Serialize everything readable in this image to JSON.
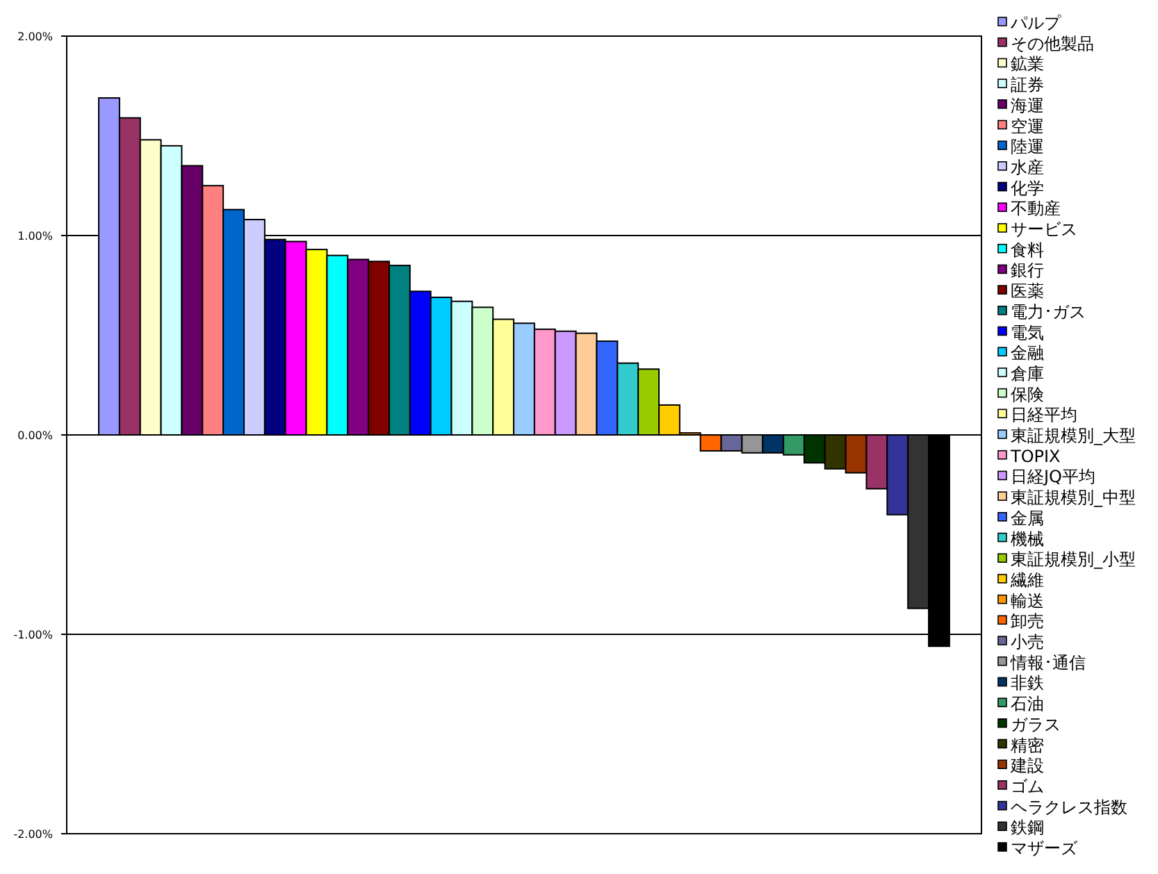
{
  "chart_data": {
    "type": "bar",
    "categories": [
      null
    ],
    "ylim": [
      -2,
      2
    ],
    "yticks": [
      {
        "value": -2,
        "label": "-2.00%"
      },
      {
        "value": -1,
        "label": "-1.00%"
      },
      {
        "value": 0,
        "label": "0.00%"
      },
      {
        "value": 1,
        "label": "1.00%"
      },
      {
        "value": 2,
        "label": "2.00%"
      }
    ],
    "grid": "y",
    "legend": "right",
    "tick_labels": "y",
    "series": [
      {
        "name": "パルプ",
        "color": "#9999ff",
        "values": [
          1.69
        ]
      },
      {
        "name": "その他製品",
        "color": "#993366",
        "values": [
          1.59
        ]
      },
      {
        "name": "鉱業",
        "color": "#ffffcc",
        "values": [
          1.48
        ]
      },
      {
        "name": "証券",
        "color": "#ccffff",
        "values": [
          1.45
        ]
      },
      {
        "name": "海運",
        "color": "#660066",
        "values": [
          1.35
        ]
      },
      {
        "name": "空運",
        "color": "#ff8080",
        "values": [
          1.25
        ]
      },
      {
        "name": "陸運",
        "color": "#0066cc",
        "values": [
          1.13
        ]
      },
      {
        "name": "水産",
        "color": "#ccccff",
        "values": [
          1.08
        ]
      },
      {
        "name": "化学",
        "color": "#000080",
        "values": [
          0.98
        ]
      },
      {
        "name": "不動産",
        "color": "#ff00ff",
        "values": [
          0.97
        ]
      },
      {
        "name": "サービス",
        "color": "#ffff00",
        "values": [
          0.93
        ]
      },
      {
        "name": "食料",
        "color": "#00ffff",
        "values": [
          0.9
        ]
      },
      {
        "name": "銀行",
        "color": "#800080",
        "values": [
          0.88
        ]
      },
      {
        "name": "医薬",
        "color": "#800000",
        "values": [
          0.87
        ]
      },
      {
        "name": "電力･ガス",
        "color": "#008080",
        "values": [
          0.85
        ]
      },
      {
        "name": "電気",
        "color": "#0000ff",
        "values": [
          0.72
        ]
      },
      {
        "name": "金融",
        "color": "#00ccff",
        "values": [
          0.69
        ]
      },
      {
        "name": "倉庫",
        "color": "#ccffff",
        "values": [
          0.67
        ]
      },
      {
        "name": "保険",
        "color": "#ccffcc",
        "values": [
          0.64
        ]
      },
      {
        "name": "日経平均",
        "color": "#ffff99",
        "values": [
          0.58
        ]
      },
      {
        "name": "東証規模別_大型",
        "color": "#99ccff",
        "values": [
          0.56
        ]
      },
      {
        "name": "TOPIX",
        "color": "#ff99cc",
        "values": [
          0.53
        ]
      },
      {
        "name": "日経JQ平均",
        "color": "#cc99ff",
        "values": [
          0.52
        ]
      },
      {
        "name": "東証規模別_中型",
        "color": "#ffcc99",
        "values": [
          0.51
        ]
      },
      {
        "name": "金属",
        "color": "#3366ff",
        "values": [
          0.47
        ]
      },
      {
        "name": "機械",
        "color": "#33cccc",
        "values": [
          0.36
        ]
      },
      {
        "name": "東証規模別_小型",
        "color": "#99cc00",
        "values": [
          0.33
        ]
      },
      {
        "name": "繊維",
        "color": "#ffcc00",
        "values": [
          0.15
        ]
      },
      {
        "name": "輸送",
        "color": "#ff9900",
        "values": [
          0.01
        ]
      },
      {
        "name": "卸売",
        "color": "#ff6600",
        "values": [
          -0.08
        ]
      },
      {
        "name": "小売",
        "color": "#666699",
        "values": [
          -0.08
        ]
      },
      {
        "name": "情報･通信",
        "color": "#969696",
        "values": [
          -0.09
        ]
      },
      {
        "name": "非鉄",
        "color": "#003366",
        "values": [
          -0.09
        ]
      },
      {
        "name": "石油",
        "color": "#339966",
        "values": [
          -0.1
        ]
      },
      {
        "name": "ガラス",
        "color": "#003300",
        "values": [
          -0.14
        ]
      },
      {
        "name": "精密",
        "color": "#333300",
        "values": [
          -0.17
        ]
      },
      {
        "name": "建設",
        "color": "#993300",
        "values": [
          -0.19
        ]
      },
      {
        "name": "ゴム",
        "color": "#993366",
        "values": [
          -0.27
        ]
      },
      {
        "name": "ヘラクレス指数",
        "color": "#333399",
        "values": [
          -0.4
        ]
      },
      {
        "name": "鉄鋼",
        "color": "#333333",
        "values": [
          -0.87
        ]
      },
      {
        "name": "マザーズ",
        "color": "#000000",
        "values": [
          -1.06
        ]
      }
    ]
  }
}
